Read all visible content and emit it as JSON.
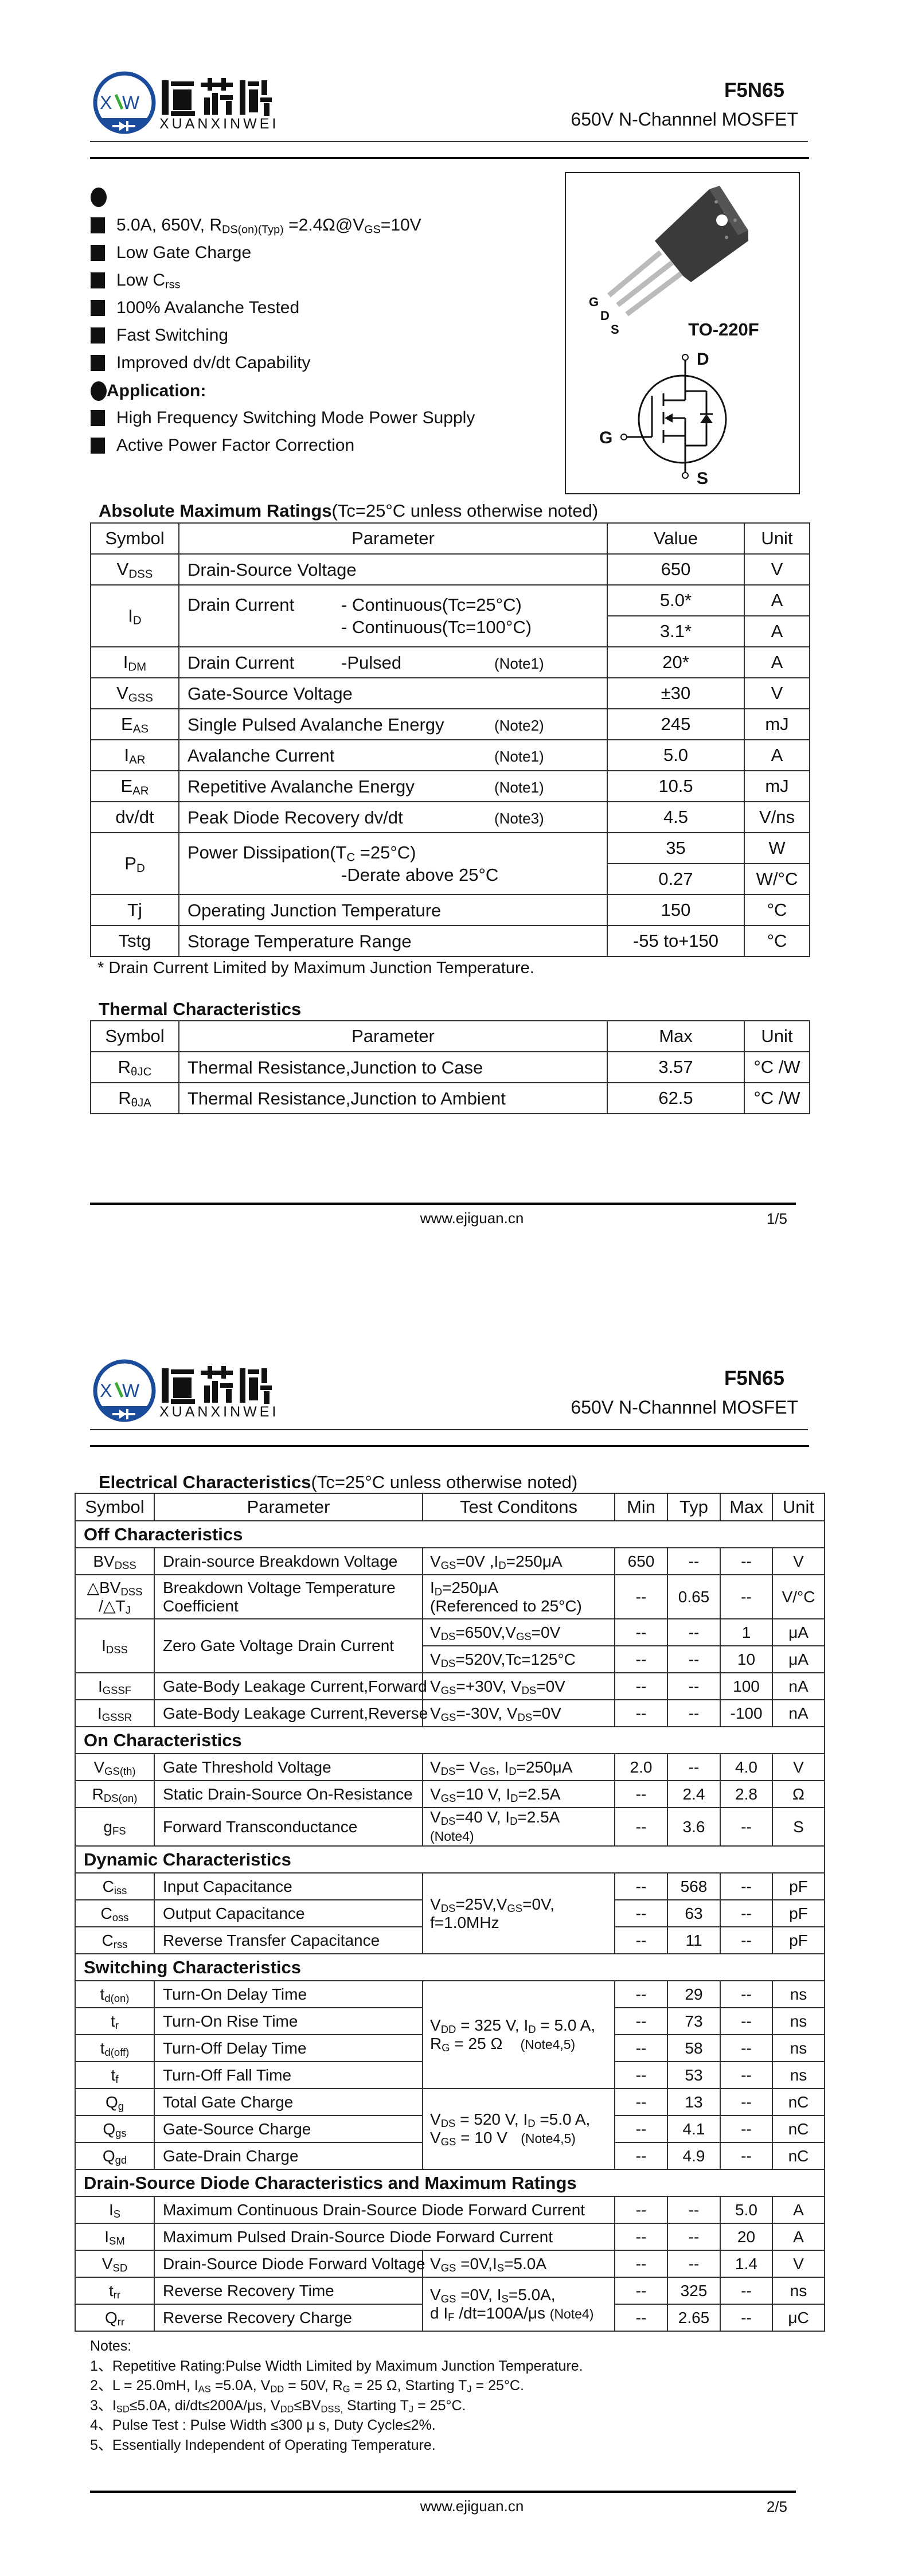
{
  "header": {
    "part": "F5N65",
    "subtitle": "650V N-Channnel MOSFET"
  },
  "logo": {
    "cn": "恒芯微",
    "en": "XUANXINWEI",
    "mark": "XVW",
    "blue": "#1b4b9b",
    "green": "#3aa935"
  },
  "features": [
    [
      "5.0A, 650V, R",
      {
        "sub": "DS(on)(Typ)"
      },
      " =2.4Ω@V",
      {
        "sub": "GS"
      },
      "=10V"
    ],
    [
      "Low Gate Charge"
    ],
    [
      "Low C",
      {
        "sub": "rss"
      }
    ],
    [
      "100% Avalanche Tested"
    ],
    [
      "Fast Switching"
    ],
    [
      "Improved dv/dt Capability"
    ]
  ],
  "application": {
    "title": "Application:",
    "items": [
      "High Frequency Switching Mode Power Supply",
      "Active Power Factor Correction"
    ]
  },
  "package": {
    "name": "TO-220F",
    "pins": [
      "G",
      "D",
      "S"
    ],
    "symbol_pins": {
      "d": "D",
      "g": "G",
      "s": "S"
    }
  },
  "abs_max": {
    "title": "Absolute Maximum Ratings",
    "condition": "(Tc=25°C unless otherwise noted)",
    "headers": [
      "Symbol",
      "Parameter",
      "Value",
      "Unit"
    ],
    "rows": [
      {
        "sym": [
          "V",
          {
            "sub": "DSS"
          }
        ],
        "param": [
          "Drain-Source Voltage"
        ],
        "values": [
          {
            "v": "650",
            "u": "V"
          }
        ]
      },
      {
        "sym": [
          "I",
          {
            "sub": "D"
          }
        ],
        "param": [
          "Drain Current"
        ],
        "mid": [
          "- Continuous(Tc=25°C)",
          "- Continuous(Tc=100°C)"
        ],
        "values": [
          {
            "v": "5.0*",
            "u": "A"
          },
          {
            "v": "3.1*",
            "u": "A"
          }
        ]
      },
      {
        "sym": [
          "I",
          {
            "sub": "DM"
          }
        ],
        "param": [
          "Drain Current"
        ],
        "mid": [
          "-Pulsed"
        ],
        "note": "(Note1)",
        "values": [
          {
            "v": "20*",
            "u": "A"
          }
        ]
      },
      {
        "sym": [
          "V",
          {
            "sub": "GSS"
          }
        ],
        "param": [
          "Gate-Source Voltage"
        ],
        "values": [
          {
            "v": "±30",
            "u": "V"
          }
        ]
      },
      {
        "sym": [
          "E",
          {
            "sub": "AS"
          }
        ],
        "param": [
          "Single Pulsed Avalanche Energy"
        ],
        "note": "(Note2)",
        "values": [
          {
            "v": "245",
            "u": "mJ"
          }
        ]
      },
      {
        "sym": [
          "I",
          {
            "sub": "AR"
          }
        ],
        "param": [
          "Avalanche Current"
        ],
        "note": "(Note1)",
        "values": [
          {
            "v": "5.0",
            "u": "A"
          }
        ]
      },
      {
        "sym": [
          "E",
          {
            "sub": "AR"
          }
        ],
        "param": [
          "Repetitive Avalanche Energy"
        ],
        "note": "(Note1)",
        "values": [
          {
            "v": "10.5",
            "u": "mJ"
          }
        ]
      },
      {
        "sym": [
          "dv/dt"
        ],
        "param": [
          "Peak Diode Recovery dv/dt"
        ],
        "note": "(Note3)",
        "values": [
          {
            "v": "4.5",
            "u": "V/ns"
          }
        ]
      },
      {
        "sym": [
          "P",
          {
            "sub": "D"
          }
        ],
        "param": [
          "Power Dissipation(T",
          {
            "sub": "C"
          },
          " =25°C)"
        ],
        "mid": [
          "",
          "-Derate above 25°C"
        ],
        "values": [
          {
            "v": "35",
            "u": "W"
          },
          {
            "v": "0.27",
            "u": "W/°C"
          }
        ]
      },
      {
        "sym": [
          "Tj"
        ],
        "param": [
          "Operating Junction Temperature"
        ],
        "values": [
          {
            "v": "150",
            "u": "°C"
          }
        ]
      },
      {
        "sym": [
          "Tstg"
        ],
        "param": [
          "Storage Temperature Range"
        ],
        "values": [
          {
            "v": "-55 to+150",
            "u": "°C"
          }
        ]
      }
    ],
    "footnote": "* Drain Current Limited by Maximum Junction Temperature."
  },
  "thermal": {
    "title": "Thermal Characteristics",
    "headers": [
      "Symbol",
      "Parameter",
      "Max",
      "Unit"
    ],
    "rows": [
      {
        "sym": [
          "R",
          {
            "sub": "θJC"
          }
        ],
        "param": [
          "Thermal Resistance,Junction to Case"
        ],
        "values": [
          {
            "v": "3.57",
            "u": "°C /W"
          }
        ]
      },
      {
        "sym": [
          "R",
          {
            "sub": "θJA"
          }
        ],
        "param": [
          "Thermal Resistance,Junction to Ambient"
        ],
        "values": [
          {
            "v": "62.5",
            "u": "°C /W"
          }
        ]
      }
    ]
  },
  "electrical": {
    "title": "Electrical Characteristics",
    "condition": "(Tc=25°C unless otherwise noted)",
    "headers": [
      "Symbol",
      "Parameter",
      "Test Conditons",
      "Min",
      "Typ",
      "Max",
      "Unit"
    ],
    "rows": [
      {
        "section": "Off Characteristics"
      },
      {
        "sym": [
          "BV",
          {
            "sub": "DSS"
          }
        ],
        "param": "Drain-source Breakdown Voltage",
        "cond": [
          "V",
          {
            "sub": "GS"
          },
          "=0V ,I",
          {
            "sub": "D"
          },
          "=250μA"
        ],
        "min": "650",
        "typ": "--",
        "max": "--",
        "unit": "V"
      },
      {
        "sym": [
          "△BV",
          {
            "sub": "DSS"
          },
          "\n/△T",
          {
            "sub": "J"
          }
        ],
        "param": "Breakdown Voltage Temperature\nCoefficient",
        "cond": [
          "I",
          {
            "sub": "D"
          },
          "=250μA\n(Referenced to 25°C)"
        ],
        "min": "--",
        "typ": "0.65",
        "max": "--",
        "unit": "V/°C"
      },
      {
        "sym": [
          "I",
          {
            "sub": "DSS"
          }
        ],
        "param": "Zero Gate Voltage Drain Current",
        "cond": [
          "V",
          {
            "sub": "DS"
          },
          "=650V,V",
          {
            "sub": "GS"
          },
          "=0V"
        ],
        "min": "--",
        "typ": "--",
        "max": "1",
        "unit": "μA"
      },
      {
        "sym": null,
        "param": null,
        "cond": [
          "V",
          {
            "sub": "DS"
          },
          "=520V,Tc=125°C"
        ],
        "min": "--",
        "typ": "--",
        "max": "10",
        "unit": "μA"
      },
      {
        "sym": [
          "I",
          {
            "sub": "GSSF"
          }
        ],
        "param": "Gate-Body Leakage Current,Forward",
        "cond": [
          "V",
          {
            "sub": "GS"
          },
          "=+30V, V",
          {
            "sub": "DS"
          },
          "=0V"
        ],
        "min": "--",
        "typ": "--",
        "max": "100",
        "unit": "nA"
      },
      {
        "sym": [
          "I",
          {
            "sub": "GSSR"
          }
        ],
        "param": "Gate-Body Leakage Current,Reverse",
        "cond": [
          "V",
          {
            "sub": "GS"
          },
          "=-30V, V",
          {
            "sub": "DS"
          },
          "=0V"
        ],
        "min": "--",
        "typ": "--",
        "max": "-100",
        "unit": "nA"
      },
      {
        "section": "On Characteristics"
      },
      {
        "sym": [
          "V",
          {
            "sub": "GS(th)"
          }
        ],
        "param": "Gate Threshold Voltage",
        "cond": [
          "V",
          {
            "sub": "DS"
          },
          "= V",
          {
            "sub": "GS"
          },
          ", I",
          {
            "sub": "D"
          },
          "=250μA"
        ],
        "min": "2.0",
        "typ": "--",
        "max": "4.0",
        "unit": "V"
      },
      {
        "sym": [
          "R",
          {
            "sub": "DS(on)"
          }
        ],
        "param": "Static Drain-Source On-Resistance",
        "cond": [
          "V",
          {
            "sub": "GS"
          },
          "=10 V, I",
          {
            "sub": "D"
          },
          "=2.5A"
        ],
        "min": "--",
        "typ": "2.4",
        "max": "2.8",
        "unit": "Ω"
      },
      {
        "sym": [
          "g",
          {
            "sub": "FS"
          }
        ],
        "param": "Forward Transconductance",
        "cond": [
          "V",
          {
            "sub": "DS"
          },
          "=40 V, I",
          {
            "sub": "D"
          },
          "=2.5A\n",
          {
            "small": "(Note4)"
          }
        ],
        "min": "--",
        "typ": "3.6",
        "max": "--",
        "unit": "S"
      },
      {
        "section": "Dynamic Characteristics"
      },
      {
        "sym": [
          "C",
          {
            "sub": "iss"
          }
        ],
        "param": "Input Capacitance",
        "cond": [
          "V",
          {
            "sub": "DS"
          },
          "=25V,V",
          {
            "sub": "GS"
          },
          "=0V,\nf=1.0MHz"
        ],
        "min": "--",
        "typ": "568",
        "max": "--",
        "unit": "pF"
      },
      {
        "sym": [
          "C",
          {
            "sub": "oss"
          }
        ],
        "param": "Output Capacitance",
        "cond": null,
        "min": "--",
        "typ": "63",
        "max": "--",
        "unit": "pF"
      },
      {
        "sym": [
          "C",
          {
            "sub": "rss"
          }
        ],
        "param": "Reverse Transfer Capacitance",
        "cond": null,
        "min": "--",
        "typ": "11",
        "max": "--",
        "unit": "pF"
      },
      {
        "section": "Switching Characteristics"
      },
      {
        "sym": [
          "t",
          {
            "sub": "d(on)"
          }
        ],
        "param": "Turn-On Delay Time",
        "cond": [
          "V",
          {
            "sub": "DD"
          },
          " = 325 V, I",
          {
            "sub": "D"
          },
          " = 5.0 A,\nR",
          {
            "sub": "G"
          },
          " = 25 Ω    ",
          {
            "small": "(Note4,5)"
          }
        ],
        "min": "--",
        "typ": "29",
        "max": "--",
        "unit": "ns"
      },
      {
        "sym": [
          "t",
          {
            "sub": "r"
          }
        ],
        "param": "Turn-On Rise Time",
        "cond": null,
        "min": "--",
        "typ": "73",
        "max": "--",
        "unit": "ns"
      },
      {
        "sym": [
          "t",
          {
            "sub": "d(off)"
          }
        ],
        "param": "Turn-Off Delay Time",
        "cond": null,
        "min": "--",
        "typ": "58",
        "max": "--",
        "unit": "ns"
      },
      {
        "sym": [
          "t",
          {
            "sub": "f"
          }
        ],
        "param": "Turn-Off Fall Time",
        "cond": null,
        "min": "--",
        "typ": "53",
        "max": "--",
        "unit": "ns"
      },
      {
        "sym": [
          "Q",
          {
            "sub": "g"
          }
        ],
        "param": "Total Gate Charge",
        "cond": [
          "V",
          {
            "sub": "DS"
          },
          " = 520 V, I",
          {
            "sub": "D"
          },
          " =5.0 A,\nV",
          {
            "sub": "GS"
          },
          " = 10 V   ",
          {
            "small": "(Note4,5)"
          }
        ],
        "min": "--",
        "typ": "13",
        "max": "--",
        "unit": "nC"
      },
      {
        "sym": [
          "Q",
          {
            "sub": "gs"
          }
        ],
        "param": "Gate-Source Charge",
        "cond": null,
        "min": "--",
        "typ": "4.1",
        "max": "--",
        "unit": "nC"
      },
      {
        "sym": [
          "Q",
          {
            "sub": "gd"
          }
        ],
        "param": "Gate-Drain Charge",
        "cond": null,
        "min": "--",
        "typ": "4.9",
        "max": "--",
        "unit": "nC"
      },
      {
        "section": "Drain-Source Diode Characteristics and Maximum Ratings"
      },
      {
        "sym": [
          "I",
          {
            "sub": "S"
          }
        ],
        "param": "Maximum Continuous Drain-Source Diode Forward Current",
        "min": "--",
        "typ": "--",
        "max": "5.0",
        "unit": "A"
      },
      {
        "sym": [
          "I",
          {
            "sub": "SM"
          }
        ],
        "param": "Maximum Pulsed Drain-Source Diode Forward Current",
        "min": "--",
        "typ": "--",
        "max": "20",
        "unit": "A"
      },
      {
        "sym": [
          "V",
          {
            "sub": "SD"
          }
        ],
        "param": "Drain-Source Diode Forward Voltage",
        "cond": [
          "V",
          {
            "sub": "GS"
          },
          " =0V,I",
          {
            "sub": "S"
          },
          "=5.0A"
        ],
        "min": "--",
        "typ": "--",
        "max": "1.4",
        "unit": "V"
      },
      {
        "sym": [
          "t",
          {
            "sub": "rr"
          }
        ],
        "param": "Reverse Recovery Time",
        "cond": [
          "V",
          {
            "sub": "GS"
          },
          " =0V, I",
          {
            "sub": "S"
          },
          "=5.0A,\nd I",
          {
            "sub": "F"
          },
          " /dt=100A/μs ",
          {
            "small": "(Note4)"
          }
        ],
        "min": "--",
        "typ": "325",
        "max": "--",
        "unit": "ns"
      },
      {
        "sym": [
          "Q",
          {
            "sub": "rr"
          }
        ],
        "param": "Reverse Recovery Charge",
        "cond": null,
        "min": "--",
        "typ": "2.65",
        "max": "--",
        "unit": "μC"
      }
    ],
    "notes": [
      [
        "Notes:"
      ],
      [
        "1、Repetitive Rating:Pulse Width Limited by Maximum Junction Temperature."
      ],
      [
        "2、L = 25.0mH, I",
        {
          "sub": "AS"
        },
        " =5.0A, V",
        {
          "sub": "DD"
        },
        " = 50V, R",
        {
          "sub": "G"
        },
        " = 25 Ω, Starting T",
        {
          "sub": "J"
        },
        " = 25°C."
      ],
      [
        "3、I",
        {
          "sub": "SD"
        },
        "≤5.0A, di/dt≤200A/μs, V",
        {
          "sub": "DD"
        },
        "≤BV",
        {
          "sub": "DSS,"
        },
        " Starting T",
        {
          "sub": "J"
        },
        " = 25°C."
      ],
      [
        "4、Pulse Test : Pulse Width ≤300 μ s, Duty Cycle≤2%."
      ],
      [
        "5、Essentially Independent of Operating Temperature."
      ]
    ]
  },
  "footer": {
    "url": "www.ejiguan.cn",
    "pages": [
      "1/5",
      "2/5"
    ]
  }
}
